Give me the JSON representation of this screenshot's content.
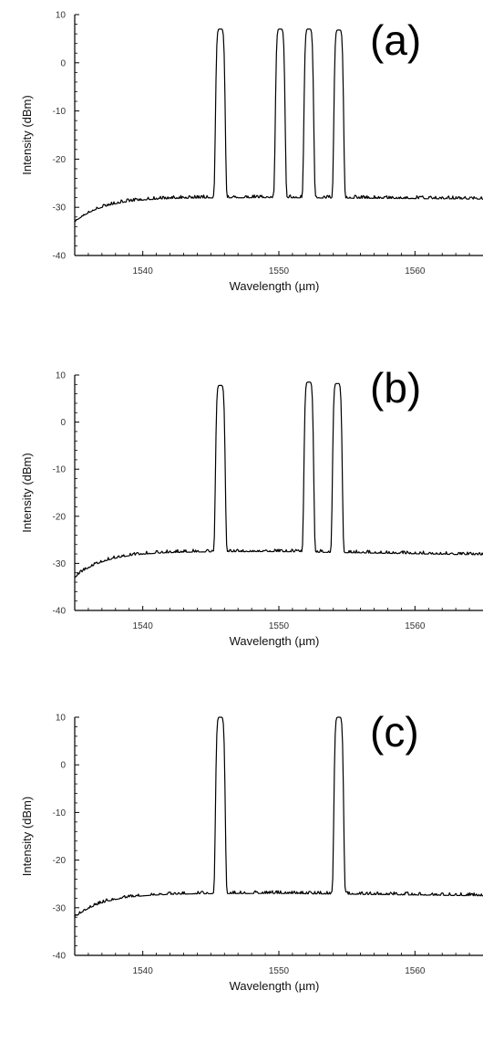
{
  "chart_data": [
    {
      "type": "line",
      "panel_label": "(a)",
      "xlabel": "Wavelength (µm)",
      "ylabel": "Intensity (dBm)",
      "xlim": [
        1535,
        1565
      ],
      "ylim": [
        -40,
        10
      ],
      "x_ticks": [
        1540,
        1550,
        1560
      ],
      "y_ticks": [
        10,
        0,
        -10,
        -20,
        -30,
        -40
      ],
      "grid": false,
      "baseline": {
        "start": -33,
        "mid": -28,
        "end": -28.3
      },
      "peaks": [
        {
          "center": 1545.7,
          "peak": 7
        },
        {
          "center": 1550.1,
          "peak": 7
        },
        {
          "center": 1552.2,
          "peak": 7
        },
        {
          "center": 1554.4,
          "peak": 6.8
        }
      ]
    },
    {
      "type": "line",
      "panel_label": "(b)",
      "xlabel": "Wavelength (µm)",
      "ylabel": "Intensity (dBm)",
      "xlim": [
        1535,
        1565
      ],
      "ylim": [
        -40,
        10
      ],
      "x_ticks": [
        1540,
        1550,
        1560
      ],
      "y_ticks": [
        10,
        0,
        -10,
        -20,
        -30,
        -40
      ],
      "grid": false,
      "baseline": {
        "start": -33,
        "mid": -27.5,
        "end": -28.2
      },
      "peaks": [
        {
          "center": 1545.7,
          "peak": 7.8
        },
        {
          "center": 1552.2,
          "peak": 8.5
        },
        {
          "center": 1554.3,
          "peak": 8.2
        }
      ]
    },
    {
      "type": "line",
      "panel_label": "(c)",
      "xlabel": "Wavelength (µm)",
      "ylabel": "Intensity (dBm)",
      "xlim": [
        1535,
        1565
      ],
      "ylim": [
        -40,
        10
      ],
      "x_ticks": [
        1540,
        1550,
        1560
      ],
      "y_ticks": [
        10,
        0,
        -10,
        -20,
        -30,
        -40
      ],
      "grid": false,
      "baseline": {
        "start": -32,
        "mid": -27,
        "end": -27.5
      },
      "peaks": [
        {
          "center": 1545.7,
          "peak": 10
        },
        {
          "center": 1554.4,
          "peak": 10
        }
      ]
    }
  ]
}
